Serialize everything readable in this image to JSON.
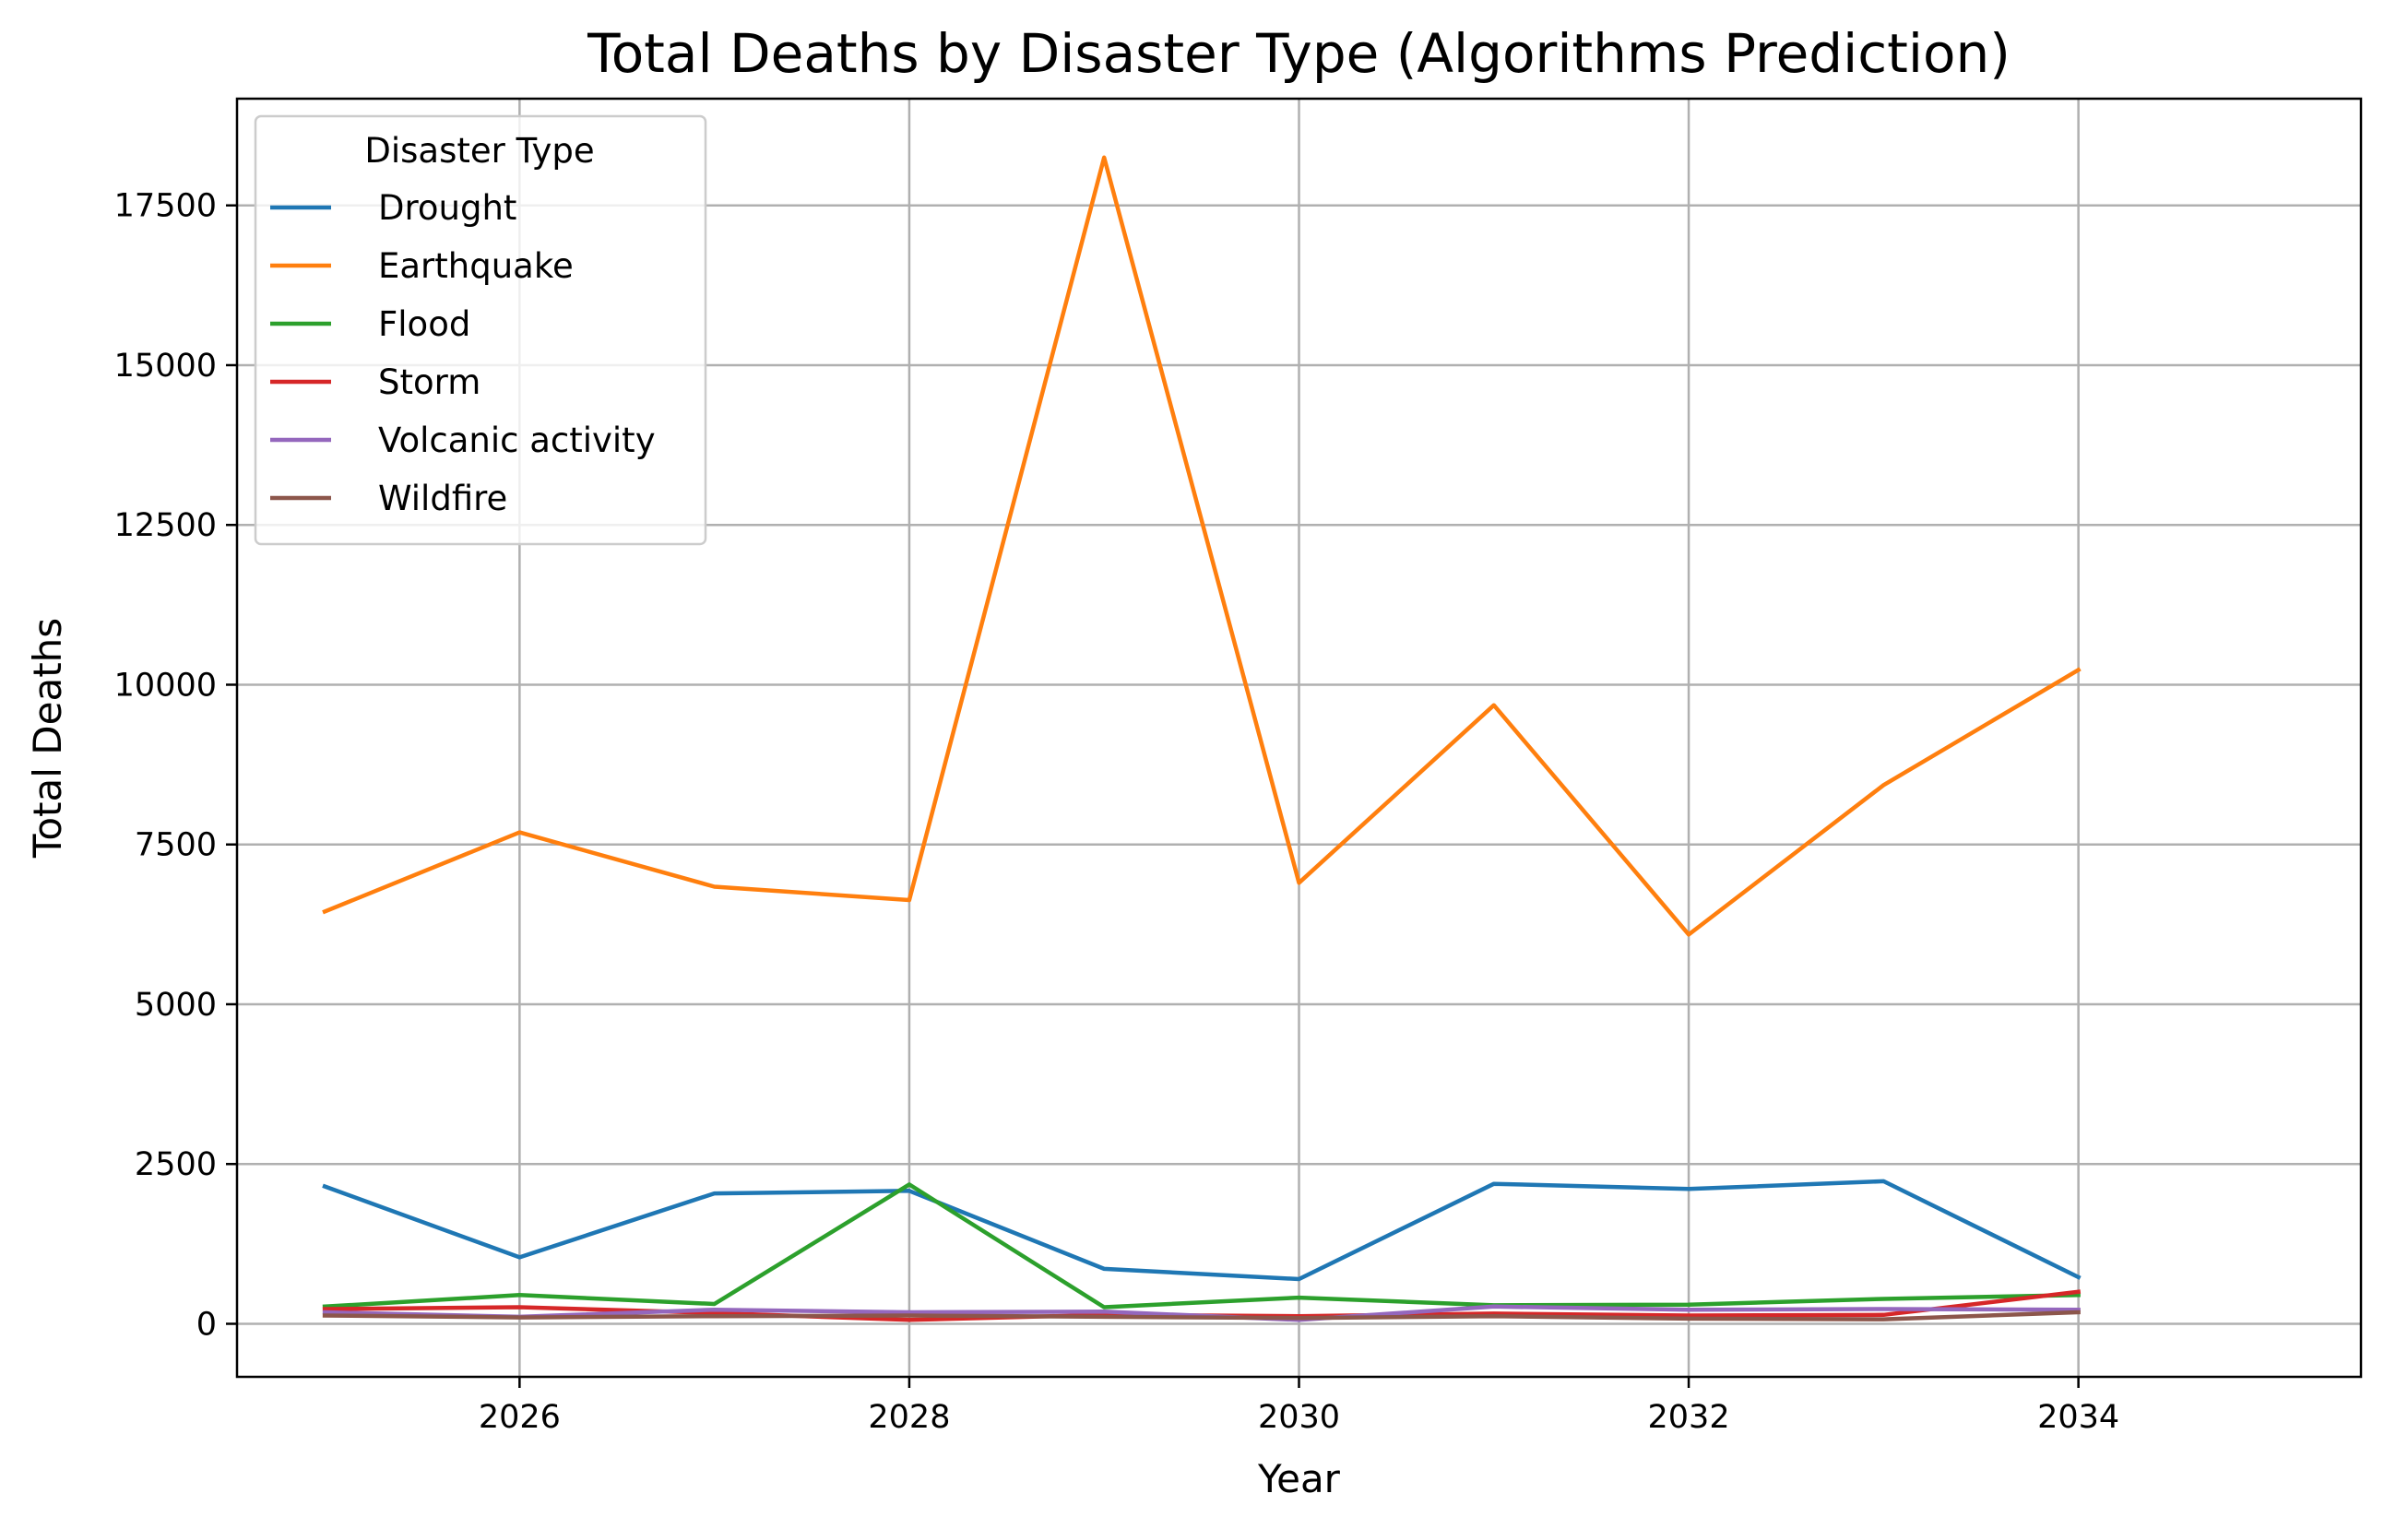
{
  "chart_data": {
    "type": "line",
    "title": "Total Deaths by Disaster Type (Algorithms Prediction)",
    "xlabel": "Year",
    "ylabel": "Total Deaths",
    "x": [
      2025,
      2026,
      2027,
      2028,
      2029,
      2030,
      2031,
      2032,
      2033,
      2034
    ],
    "xlim": [
      2024.55,
      2035.45
    ],
    "ylim": [
      -830,
      19170
    ],
    "xticks": [
      2026,
      2028,
      2030,
      2032,
      2034
    ],
    "yticks": [
      0,
      2500,
      5000,
      7500,
      10000,
      12500,
      15000,
      17500
    ],
    "grid": true,
    "legend": {
      "title": "Disaster Type",
      "placement": "top-left"
    },
    "series": [
      {
        "name": "Drought",
        "color": "#1f77b4",
        "values": [
          2150,
          1040,
          2040,
          2080,
          860,
          700,
          2190,
          2110,
          2230,
          730
        ]
      },
      {
        "name": "Earthquake",
        "color": "#ff7f0e",
        "values": [
          6450,
          7690,
          6840,
          6630,
          18250,
          6900,
          9680,
          6090,
          8430,
          10230
        ]
      },
      {
        "name": "Flood",
        "color": "#2ca02c",
        "values": [
          270,
          450,
          310,
          2180,
          260,
          410,
          290,
          300,
          390,
          450
        ]
      },
      {
        "name": "Storm",
        "color": "#d62728",
        "values": [
          230,
          260,
          170,
          60,
          140,
          120,
          160,
          130,
          140,
          500
        ]
      },
      {
        "name": "Volcanic activity",
        "color": "#9467bd",
        "values": [
          180,
          110,
          220,
          180,
          190,
          60,
          270,
          220,
          230,
          220
        ]
      },
      {
        "name": "Wildfire",
        "color": "#8c564b",
        "values": [
          130,
          100,
          120,
          130,
          110,
          90,
          120,
          80,
          70,
          180
        ]
      }
    ]
  }
}
